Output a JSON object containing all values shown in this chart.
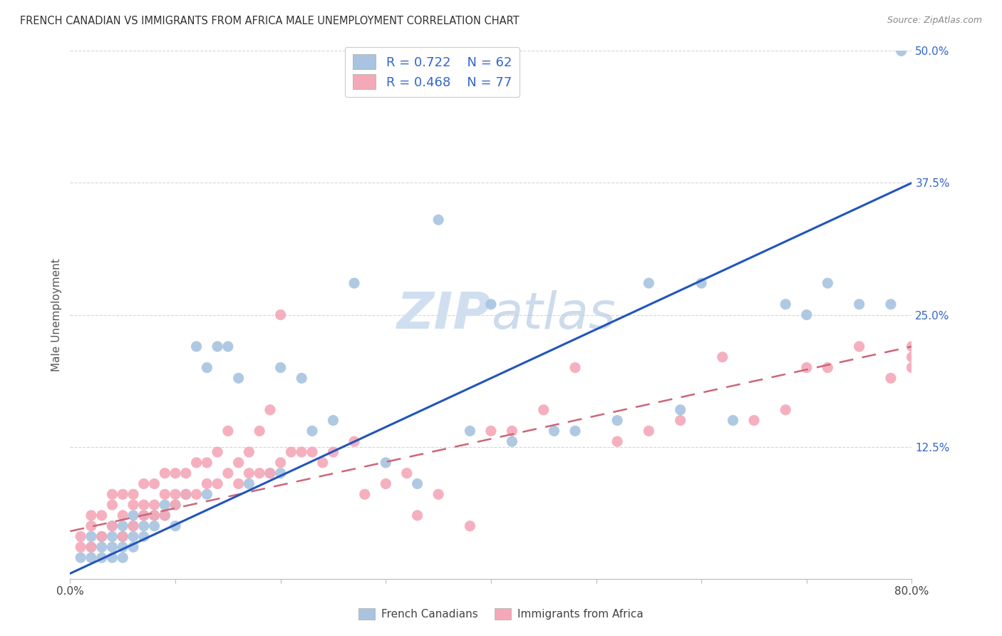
{
  "title": "FRENCH CANADIAN VS IMMIGRANTS FROM AFRICA MALE UNEMPLOYMENT CORRELATION CHART",
  "source": "Source: ZipAtlas.com",
  "ylabel": "Male Unemployment",
  "xlim": [
    0.0,
    0.8
  ],
  "ylim": [
    0.0,
    0.5
  ],
  "xticks": [
    0.0,
    0.1,
    0.2,
    0.3,
    0.4,
    0.5,
    0.6,
    0.7,
    0.8
  ],
  "yticks": [
    0.0,
    0.125,
    0.25,
    0.375,
    0.5
  ],
  "ytick_labels": [
    "",
    "12.5%",
    "25.0%",
    "37.5%",
    "50.0%"
  ],
  "series1_label": "French Canadians",
  "series1_color": "#a8c4e0",
  "series1_line_color": "#2255bb",
  "series1_R": "0.722",
  "series1_N": "62",
  "series2_label": "Immigrants from Africa",
  "series2_color": "#f4a8b8",
  "series2_line_color": "#cc6677",
  "series2_R": "0.468",
  "series2_N": "77",
  "legend_R_color": "#3366cc",
  "background_color": "#ffffff",
  "grid_color": "#cccccc",
  "watermark_color": "#d0dff0",
  "title_fontsize": 10.5,
  "french_canadians_x": [
    0.01,
    0.02,
    0.02,
    0.02,
    0.03,
    0.03,
    0.03,
    0.04,
    0.04,
    0.04,
    0.04,
    0.05,
    0.05,
    0.05,
    0.05,
    0.06,
    0.06,
    0.06,
    0.06,
    0.07,
    0.07,
    0.07,
    0.08,
    0.08,
    0.09,
    0.09,
    0.1,
    0.1,
    0.11,
    0.12,
    0.13,
    0.13,
    0.14,
    0.15,
    0.16,
    0.17,
    0.19,
    0.2,
    0.2,
    0.22,
    0.23,
    0.25,
    0.27,
    0.3,
    0.33,
    0.35,
    0.38,
    0.4,
    0.42,
    0.46,
    0.48,
    0.52,
    0.55,
    0.58,
    0.6,
    0.63,
    0.68,
    0.7,
    0.72,
    0.75,
    0.78,
    0.79
  ],
  "french_canadians_y": [
    0.02,
    0.02,
    0.03,
    0.04,
    0.02,
    0.03,
    0.04,
    0.02,
    0.03,
    0.04,
    0.05,
    0.02,
    0.03,
    0.04,
    0.05,
    0.03,
    0.04,
    0.05,
    0.06,
    0.04,
    0.05,
    0.06,
    0.05,
    0.06,
    0.06,
    0.07,
    0.05,
    0.07,
    0.08,
    0.22,
    0.2,
    0.08,
    0.22,
    0.22,
    0.19,
    0.09,
    0.1,
    0.2,
    0.1,
    0.19,
    0.14,
    0.15,
    0.28,
    0.11,
    0.09,
    0.34,
    0.14,
    0.26,
    0.13,
    0.14,
    0.14,
    0.15,
    0.28,
    0.16,
    0.28,
    0.15,
    0.26,
    0.25,
    0.28,
    0.26,
    0.26,
    0.5
  ],
  "immigrants_africa_x": [
    0.01,
    0.01,
    0.02,
    0.02,
    0.02,
    0.03,
    0.03,
    0.04,
    0.04,
    0.04,
    0.05,
    0.05,
    0.05,
    0.06,
    0.06,
    0.06,
    0.07,
    0.07,
    0.07,
    0.08,
    0.08,
    0.08,
    0.09,
    0.09,
    0.09,
    0.1,
    0.1,
    0.1,
    0.11,
    0.11,
    0.12,
    0.12,
    0.13,
    0.13,
    0.14,
    0.14,
    0.15,
    0.15,
    0.16,
    0.16,
    0.17,
    0.17,
    0.18,
    0.18,
    0.19,
    0.19,
    0.2,
    0.2,
    0.21,
    0.22,
    0.23,
    0.24,
    0.25,
    0.27,
    0.28,
    0.3,
    0.32,
    0.33,
    0.35,
    0.38,
    0.4,
    0.42,
    0.45,
    0.48,
    0.52,
    0.55,
    0.58,
    0.62,
    0.65,
    0.68,
    0.7,
    0.72,
    0.75,
    0.78,
    0.8,
    0.8,
    0.8
  ],
  "immigrants_africa_y": [
    0.03,
    0.04,
    0.03,
    0.05,
    0.06,
    0.04,
    0.06,
    0.05,
    0.07,
    0.08,
    0.04,
    0.06,
    0.08,
    0.05,
    0.07,
    0.08,
    0.06,
    0.07,
    0.09,
    0.06,
    0.07,
    0.09,
    0.06,
    0.08,
    0.1,
    0.07,
    0.08,
    0.1,
    0.08,
    0.1,
    0.08,
    0.11,
    0.09,
    0.11,
    0.09,
    0.12,
    0.1,
    0.14,
    0.09,
    0.11,
    0.1,
    0.12,
    0.1,
    0.14,
    0.1,
    0.16,
    0.11,
    0.25,
    0.12,
    0.12,
    0.12,
    0.11,
    0.12,
    0.13,
    0.08,
    0.09,
    0.1,
    0.06,
    0.08,
    0.05,
    0.14,
    0.14,
    0.16,
    0.2,
    0.13,
    0.14,
    0.15,
    0.21,
    0.15,
    0.16,
    0.2,
    0.2,
    0.22,
    0.19,
    0.2,
    0.21,
    0.22
  ]
}
